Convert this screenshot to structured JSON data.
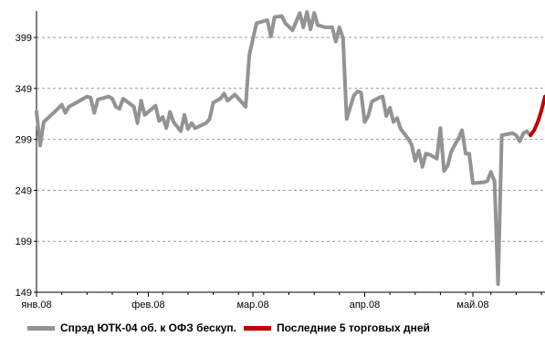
{
  "chart_data": {
    "type": "line",
    "x_axis_type": "date",
    "y_ticks": [
      149,
      199,
      249,
      299,
      349,
      399
    ],
    "ylim": [
      149,
      425
    ],
    "xlim": [
      "2008-01-01",
      "2008-05-21"
    ],
    "x_ticks": [
      {
        "date": "2008-01-01",
        "label": "янв.08"
      },
      {
        "date": "2008-02-01",
        "label": "фев.08"
      },
      {
        "date": "2008-03-01",
        "label": "мар.08"
      },
      {
        "date": "2008-04-01",
        "label": "апр.08"
      },
      {
        "date": "2008-05-01",
        "label": "май.08"
      }
    ],
    "grid": "horizontal dashed",
    "legend_position": "bottom",
    "series": [
      {
        "name": "Спрэд ЮТК-04 об. к ОФЗ бескуп.",
        "color": "#939393",
        "points": [
          [
            "2008-01-01",
            326
          ],
          [
            "2008-01-02",
            293
          ],
          [
            "2008-01-03",
            316
          ],
          [
            "2008-01-06",
            326
          ],
          [
            "2008-01-08",
            333
          ],
          [
            "2008-01-09",
            325
          ],
          [
            "2008-01-10",
            331
          ],
          [
            "2008-01-13",
            337
          ],
          [
            "2008-01-15",
            341
          ],
          [
            "2008-01-16",
            340
          ],
          [
            "2008-01-17",
            325
          ],
          [
            "2008-01-18",
            338
          ],
          [
            "2008-01-21",
            341
          ],
          [
            "2008-01-22",
            339
          ],
          [
            "2008-01-23",
            331
          ],
          [
            "2008-01-24",
            329
          ],
          [
            "2008-01-25",
            339
          ],
          [
            "2008-01-28",
            331
          ],
          [
            "2008-01-29",
            315
          ],
          [
            "2008-01-30",
            337
          ],
          [
            "2008-01-31",
            323
          ],
          [
            "2008-02-03",
            332
          ],
          [
            "2008-02-04",
            317
          ],
          [
            "2008-02-05",
            321
          ],
          [
            "2008-02-06",
            310
          ],
          [
            "2008-02-07",
            326
          ],
          [
            "2008-02-08",
            316
          ],
          [
            "2008-02-10",
            307
          ],
          [
            "2008-02-11",
            323
          ],
          [
            "2008-02-12",
            309
          ],
          [
            "2008-02-13",
            315
          ],
          [
            "2008-02-14",
            310
          ],
          [
            "2008-02-17",
            315
          ],
          [
            "2008-02-18",
            319
          ],
          [
            "2008-02-19",
            335
          ],
          [
            "2008-02-21",
            339
          ],
          [
            "2008-02-22",
            344
          ],
          [
            "2008-02-23",
            337
          ],
          [
            "2008-02-25",
            343
          ],
          [
            "2008-02-28",
            331
          ],
          [
            "2008-02-29",
            382
          ],
          [
            "2008-03-02",
            413
          ],
          [
            "2008-03-03",
            414
          ],
          [
            "2008-03-05",
            416
          ],
          [
            "2008-03-06",
            400
          ],
          [
            "2008-03-07",
            419
          ],
          [
            "2008-03-09",
            420
          ],
          [
            "2008-03-10",
            413
          ],
          [
            "2008-03-12",
            406
          ],
          [
            "2008-03-14",
            423
          ],
          [
            "2008-03-15",
            409
          ],
          [
            "2008-03-16",
            424
          ],
          [
            "2008-03-17",
            407
          ],
          [
            "2008-03-18",
            423
          ],
          [
            "2008-03-19",
            411
          ],
          [
            "2008-03-20",
            410
          ],
          [
            "2008-03-21",
            409
          ],
          [
            "2008-03-23",
            409
          ],
          [
            "2008-03-24",
            395
          ],
          [
            "2008-03-25",
            409
          ],
          [
            "2008-03-26",
            398
          ],
          [
            "2008-03-27",
            319
          ],
          [
            "2008-03-29",
            342
          ],
          [
            "2008-03-30",
            346
          ],
          [
            "2008-03-31",
            345
          ],
          [
            "2008-04-01",
            316
          ],
          [
            "2008-04-02",
            322
          ],
          [
            "2008-04-03",
            336
          ],
          [
            "2008-04-05",
            340
          ],
          [
            "2008-04-06",
            341
          ],
          [
            "2008-04-07",
            322
          ],
          [
            "2008-04-08",
            330
          ],
          [
            "2008-04-09",
            316
          ],
          [
            "2008-04-10",
            320
          ],
          [
            "2008-04-11",
            309
          ],
          [
            "2008-04-13",
            300
          ],
          [
            "2008-04-14",
            294
          ],
          [
            "2008-04-15",
            278
          ],
          [
            "2008-04-16",
            288
          ],
          [
            "2008-04-17",
            272
          ],
          [
            "2008-04-18",
            285
          ],
          [
            "2008-04-19",
            284
          ],
          [
            "2008-04-21",
            280
          ],
          [
            "2008-04-22",
            310
          ],
          [
            "2008-04-23",
            268
          ],
          [
            "2008-04-24",
            273
          ],
          [
            "2008-04-25",
            287
          ],
          [
            "2008-04-27",
            300
          ],
          [
            "2008-04-28",
            308
          ],
          [
            "2008-04-29",
            285
          ],
          [
            "2008-04-30",
            285
          ],
          [
            "2008-05-01",
            256
          ],
          [
            "2008-05-04",
            257
          ],
          [
            "2008-05-05",
            258
          ],
          [
            "2008-05-06",
            267
          ],
          [
            "2008-05-07",
            258
          ],
          [
            "2008-05-08",
            157
          ],
          [
            "2008-05-09",
            303
          ],
          [
            "2008-05-12",
            305
          ],
          [
            "2008-05-13",
            303
          ],
          [
            "2008-05-14",
            297
          ],
          [
            "2008-05-15",
            305
          ],
          [
            "2008-05-16",
            307
          ],
          [
            "2008-05-17",
            303
          ]
        ]
      },
      {
        "name": "Последние 5 торговых дней",
        "color": "#c00000",
        "points": [
          [
            "2008-05-17",
            303
          ],
          [
            "2008-05-18",
            308
          ],
          [
            "2008-05-19",
            316
          ],
          [
            "2008-05-20",
            327
          ],
          [
            "2008-05-21",
            341
          ]
        ]
      }
    ]
  },
  "legend": {
    "series1_label": "Спрэд ЮТК-04 об. к ОФЗ бескуп.",
    "series2_label": "Последние 5 торговых дней"
  }
}
